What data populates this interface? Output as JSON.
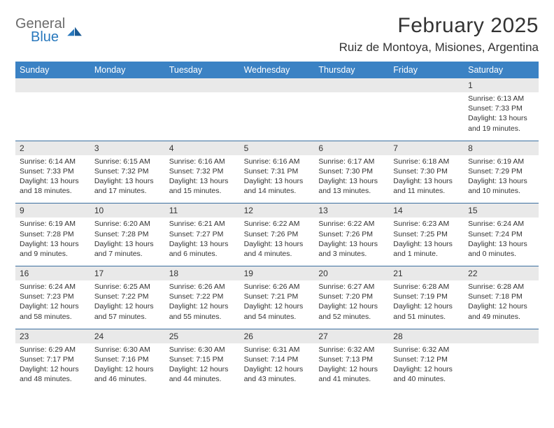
{
  "brand": {
    "line1": "General",
    "line2": "Blue"
  },
  "title": "February 2025",
  "location": "Ruiz de Montoya, Misiones, Argentina",
  "colors": {
    "header_bg": "#3b82c4",
    "header_text": "#ffffff",
    "daynum_bg": "#e9e9e9",
    "rule": "#3b6fa0",
    "logo_gray": "#6b6b6b",
    "logo_blue": "#2878bd"
  },
  "weekdays": [
    "Sunday",
    "Monday",
    "Tuesday",
    "Wednesday",
    "Thursday",
    "Friday",
    "Saturday"
  ],
  "weeks": [
    [
      {
        "n": "",
        "sunrise": "",
        "sunset": "",
        "daylight1": "",
        "daylight2": ""
      },
      {
        "n": "",
        "sunrise": "",
        "sunset": "",
        "daylight1": "",
        "daylight2": ""
      },
      {
        "n": "",
        "sunrise": "",
        "sunset": "",
        "daylight1": "",
        "daylight2": ""
      },
      {
        "n": "",
        "sunrise": "",
        "sunset": "",
        "daylight1": "",
        "daylight2": ""
      },
      {
        "n": "",
        "sunrise": "",
        "sunset": "",
        "daylight1": "",
        "daylight2": ""
      },
      {
        "n": "",
        "sunrise": "",
        "sunset": "",
        "daylight1": "",
        "daylight2": ""
      },
      {
        "n": "1",
        "sunrise": "Sunrise: 6:13 AM",
        "sunset": "Sunset: 7:33 PM",
        "daylight1": "Daylight: 13 hours",
        "daylight2": "and 19 minutes."
      }
    ],
    [
      {
        "n": "2",
        "sunrise": "Sunrise: 6:14 AM",
        "sunset": "Sunset: 7:33 PM",
        "daylight1": "Daylight: 13 hours",
        "daylight2": "and 18 minutes."
      },
      {
        "n": "3",
        "sunrise": "Sunrise: 6:15 AM",
        "sunset": "Sunset: 7:32 PM",
        "daylight1": "Daylight: 13 hours",
        "daylight2": "and 17 minutes."
      },
      {
        "n": "4",
        "sunrise": "Sunrise: 6:16 AM",
        "sunset": "Sunset: 7:32 PM",
        "daylight1": "Daylight: 13 hours",
        "daylight2": "and 15 minutes."
      },
      {
        "n": "5",
        "sunrise": "Sunrise: 6:16 AM",
        "sunset": "Sunset: 7:31 PM",
        "daylight1": "Daylight: 13 hours",
        "daylight2": "and 14 minutes."
      },
      {
        "n": "6",
        "sunrise": "Sunrise: 6:17 AM",
        "sunset": "Sunset: 7:30 PM",
        "daylight1": "Daylight: 13 hours",
        "daylight2": "and 13 minutes."
      },
      {
        "n": "7",
        "sunrise": "Sunrise: 6:18 AM",
        "sunset": "Sunset: 7:30 PM",
        "daylight1": "Daylight: 13 hours",
        "daylight2": "and 11 minutes."
      },
      {
        "n": "8",
        "sunrise": "Sunrise: 6:19 AM",
        "sunset": "Sunset: 7:29 PM",
        "daylight1": "Daylight: 13 hours",
        "daylight2": "and 10 minutes."
      }
    ],
    [
      {
        "n": "9",
        "sunrise": "Sunrise: 6:19 AM",
        "sunset": "Sunset: 7:28 PM",
        "daylight1": "Daylight: 13 hours",
        "daylight2": "and 9 minutes."
      },
      {
        "n": "10",
        "sunrise": "Sunrise: 6:20 AM",
        "sunset": "Sunset: 7:28 PM",
        "daylight1": "Daylight: 13 hours",
        "daylight2": "and 7 minutes."
      },
      {
        "n": "11",
        "sunrise": "Sunrise: 6:21 AM",
        "sunset": "Sunset: 7:27 PM",
        "daylight1": "Daylight: 13 hours",
        "daylight2": "and 6 minutes."
      },
      {
        "n": "12",
        "sunrise": "Sunrise: 6:22 AM",
        "sunset": "Sunset: 7:26 PM",
        "daylight1": "Daylight: 13 hours",
        "daylight2": "and 4 minutes."
      },
      {
        "n": "13",
        "sunrise": "Sunrise: 6:22 AM",
        "sunset": "Sunset: 7:26 PM",
        "daylight1": "Daylight: 13 hours",
        "daylight2": "and 3 minutes."
      },
      {
        "n": "14",
        "sunrise": "Sunrise: 6:23 AM",
        "sunset": "Sunset: 7:25 PM",
        "daylight1": "Daylight: 13 hours",
        "daylight2": "and 1 minute."
      },
      {
        "n": "15",
        "sunrise": "Sunrise: 6:24 AM",
        "sunset": "Sunset: 7:24 PM",
        "daylight1": "Daylight: 13 hours",
        "daylight2": "and 0 minutes."
      }
    ],
    [
      {
        "n": "16",
        "sunrise": "Sunrise: 6:24 AM",
        "sunset": "Sunset: 7:23 PM",
        "daylight1": "Daylight: 12 hours",
        "daylight2": "and 58 minutes."
      },
      {
        "n": "17",
        "sunrise": "Sunrise: 6:25 AM",
        "sunset": "Sunset: 7:22 PM",
        "daylight1": "Daylight: 12 hours",
        "daylight2": "and 57 minutes."
      },
      {
        "n": "18",
        "sunrise": "Sunrise: 6:26 AM",
        "sunset": "Sunset: 7:22 PM",
        "daylight1": "Daylight: 12 hours",
        "daylight2": "and 55 minutes."
      },
      {
        "n": "19",
        "sunrise": "Sunrise: 6:26 AM",
        "sunset": "Sunset: 7:21 PM",
        "daylight1": "Daylight: 12 hours",
        "daylight2": "and 54 minutes."
      },
      {
        "n": "20",
        "sunrise": "Sunrise: 6:27 AM",
        "sunset": "Sunset: 7:20 PM",
        "daylight1": "Daylight: 12 hours",
        "daylight2": "and 52 minutes."
      },
      {
        "n": "21",
        "sunrise": "Sunrise: 6:28 AM",
        "sunset": "Sunset: 7:19 PM",
        "daylight1": "Daylight: 12 hours",
        "daylight2": "and 51 minutes."
      },
      {
        "n": "22",
        "sunrise": "Sunrise: 6:28 AM",
        "sunset": "Sunset: 7:18 PM",
        "daylight1": "Daylight: 12 hours",
        "daylight2": "and 49 minutes."
      }
    ],
    [
      {
        "n": "23",
        "sunrise": "Sunrise: 6:29 AM",
        "sunset": "Sunset: 7:17 PM",
        "daylight1": "Daylight: 12 hours",
        "daylight2": "and 48 minutes."
      },
      {
        "n": "24",
        "sunrise": "Sunrise: 6:30 AM",
        "sunset": "Sunset: 7:16 PM",
        "daylight1": "Daylight: 12 hours",
        "daylight2": "and 46 minutes."
      },
      {
        "n": "25",
        "sunrise": "Sunrise: 6:30 AM",
        "sunset": "Sunset: 7:15 PM",
        "daylight1": "Daylight: 12 hours",
        "daylight2": "and 44 minutes."
      },
      {
        "n": "26",
        "sunrise": "Sunrise: 6:31 AM",
        "sunset": "Sunset: 7:14 PM",
        "daylight1": "Daylight: 12 hours",
        "daylight2": "and 43 minutes."
      },
      {
        "n": "27",
        "sunrise": "Sunrise: 6:32 AM",
        "sunset": "Sunset: 7:13 PM",
        "daylight1": "Daylight: 12 hours",
        "daylight2": "and 41 minutes."
      },
      {
        "n": "28",
        "sunrise": "Sunrise: 6:32 AM",
        "sunset": "Sunset: 7:12 PM",
        "daylight1": "Daylight: 12 hours",
        "daylight2": "and 40 minutes."
      },
      {
        "n": "",
        "sunrise": "",
        "sunset": "",
        "daylight1": "",
        "daylight2": ""
      }
    ]
  ]
}
